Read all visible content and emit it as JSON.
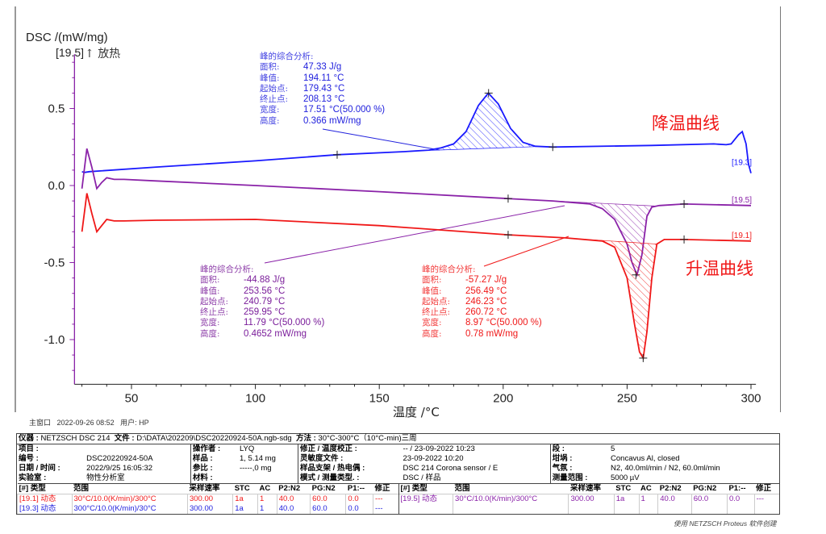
{
  "chart_data": {
    "type": "line",
    "ylabel": "DSC /(mW/mg)",
    "xlabel": "温度 /°C",
    "y_marker": "[19.5]",
    "exo_label": "放热",
    "xlim": [
      27,
      302
    ],
    "ylim": [
      -1.29,
      0.81
    ],
    "x_ticks": [
      50,
      100,
      150,
      200,
      250,
      300
    ],
    "y_ticks": [
      0.5,
      0.0,
      -0.5,
      -1.0
    ],
    "y_tick_labels": [
      "0.5",
      "0.0",
      "-0.5",
      "-1.0"
    ],
    "grid": false,
    "series": [
      {
        "name": "[19.3]",
        "color": "#1a1aff",
        "x": [
          30,
          31,
          33,
          60,
          100,
          133,
          160,
          170,
          175,
          180,
          185,
          190,
          194,
          198,
          203,
          208,
          213,
          220,
          260,
          285,
          290,
          292,
          295,
          296.5,
          298,
          299,
          300
        ],
        "y": [
          0.09,
          0.085,
          0.09,
          0.12,
          0.16,
          0.2,
          0.22,
          0.23,
          0.245,
          0.27,
          0.35,
          0.52,
          0.6,
          0.53,
          0.37,
          0.28,
          0.255,
          0.25,
          0.26,
          0.27,
          0.265,
          0.27,
          0.33,
          0.35,
          0.27,
          0.14,
          0.08
        ],
        "markers": [
          [
            133,
            0.2
          ],
          [
            194.11,
            0.6
          ],
          [
            220,
            0.25
          ]
        ],
        "hatch": [
          165,
          215
        ]
      },
      {
        "name": "[19.5]",
        "color": "#8a22a8",
        "x": [
          30,
          32,
          34,
          36,
          38,
          40,
          43,
          47,
          60,
          100,
          150,
          202,
          220,
          235,
          240,
          245,
          250,
          252,
          254,
          256,
          258,
          260,
          263,
          273,
          300
        ],
        "y": [
          -0.02,
          0.24,
          0.12,
          -0.02,
          0.02,
          0.05,
          0.04,
          0.04,
          0.03,
          0.0,
          -0.04,
          -0.085,
          -0.1,
          -0.12,
          -0.15,
          -0.22,
          -0.38,
          -0.5,
          -0.58,
          -0.45,
          -0.2,
          -0.14,
          -0.13,
          -0.12,
          -0.13
        ],
        "markers": [
          [
            202,
            -0.085
          ],
          [
            253.56,
            -0.58
          ],
          [
            273,
            -0.12
          ]
        ],
        "hatch": [
          218,
          262
        ]
      },
      {
        "name": "[19.1]",
        "color": "#f01818",
        "x": [
          30,
          32,
          34,
          36,
          38,
          40,
          43,
          47,
          60,
          100,
          150,
          202,
          225,
          240,
          245,
          250,
          253,
          255,
          256.5,
          258,
          260,
          262,
          265,
          273,
          300
        ],
        "y": [
          -0.3,
          -0.05,
          -0.18,
          -0.3,
          -0.26,
          -0.22,
          -0.23,
          -0.23,
          -0.225,
          -0.22,
          -0.26,
          -0.32,
          -0.34,
          -0.36,
          -0.4,
          -0.6,
          -0.9,
          -1.08,
          -1.12,
          -0.95,
          -0.6,
          -0.38,
          -0.35,
          -0.35,
          -0.36
        ],
        "markers": [
          [
            202,
            -0.32
          ],
          [
            256.49,
            -1.12
          ],
          [
            273,
            -0.35
          ]
        ],
        "hatch": [
          222,
          262
        ]
      }
    ]
  },
  "labels": {
    "cooling": "降温曲线",
    "heating": "升温曲线"
  },
  "annotations": [
    {
      "color": "#2222dd",
      "title": "峰的综合分析:",
      "rows": [
        [
          "面积:",
          "47.33 J/g"
        ],
        [
          "峰值:",
          "194.11 °C"
        ],
        [
          "起始点:",
          "179.43 °C"
        ],
        [
          "终止点:",
          "208.13 °C"
        ],
        [
          "宽度:",
          "17.51 °C(50.000 %)"
        ],
        [
          "高度:",
          "0.366 mW/mg"
        ]
      ]
    },
    {
      "color": "#7a1d9a",
      "title": "峰的综合分析:",
      "rows": [
        [
          "面积:",
          "-44.88 J/g"
        ],
        [
          "峰值:",
          "253.56 °C"
        ],
        [
          "起始点:",
          "240.79 °C"
        ],
        [
          "终止点:",
          "259.95 °C"
        ],
        [
          "宽度:",
          "11.79 °C(50.000 %)"
        ],
        [
          "高度:",
          "0.4652 mW/mg"
        ]
      ]
    },
    {
      "color": "#f01818",
      "title": "峰的综合分析:",
      "rows": [
        [
          "面积:",
          "-57.27 J/g"
        ],
        [
          "峰值:",
          "256.49 °C"
        ],
        [
          "起始点:",
          "246.23 °C"
        ],
        [
          "终止点:",
          "260.72 °C"
        ],
        [
          "宽度:",
          "8.97 °C(50.000 %)"
        ],
        [
          "高度:",
          "0.78 mW/mg"
        ]
      ]
    }
  ],
  "footer_line": {
    "window": "主窗口",
    "datetime": "2022-09-26 08:52",
    "user": "用户: HP"
  },
  "info": {
    "instrument_label": "仪器 :",
    "instrument": "NETZSCH DSC 214",
    "file_label": "文件 :",
    "file": "D:\\DATA\\202209\\DSC20220924-50A.ngb-sdg",
    "method_label": "方法 :",
    "method": "30°C-300°C（10°C-min)三周",
    "rows": [
      [
        [
          "项目 :",
          ""
        ],
        [
          "操作者 :",
          "LYQ"
        ],
        [
          "修正 / 温度校正 :",
          "-- / 23-09-2022 10:23"
        ],
        [
          "段 :",
          "5"
        ]
      ],
      [
        [
          "编号 :",
          "DSC20220924-50A"
        ],
        [
          "样品 :",
          "1, 5.14 mg"
        ],
        [
          "灵敏度文件 :",
          "23-09-2022 10:20"
        ],
        [
          "坩埚 :",
          "Concavus Al, closed"
        ]
      ],
      [
        [
          "日期 / 时间 :",
          "2022/9/25 16:05:32"
        ],
        [
          "参比 :",
          "-----,0 mg"
        ],
        [
          "样品支架 / 热电偶 :",
          "DSC 214 Corona sensor / E"
        ],
        [
          "气氛 :",
          "N2, 40.0ml/min / N2, 60.0ml/min"
        ]
      ],
      [
        [
          "实验室 :",
          "物性分析室"
        ],
        [
          "材料 :",
          ""
        ],
        [
          "模式 / 测量类型. :",
          "DSC / 样品"
        ],
        [
          "测量范围 :",
          "5000 µV"
        ]
      ]
    ],
    "run_headers": [
      "[#] 类型",
      "范围",
      "采样速率",
      "STC",
      "AC",
      "P2:N2",
      "PG:N2",
      "P1:--",
      "修正"
    ],
    "runs_left": [
      {
        "color": "#f01818",
        "cells": [
          "[19.1] 动态",
          "30°C/10.0(K/min)/300°C",
          "300.00",
          "1a",
          "1",
          "40.0",
          "60.0",
          "0.0",
          "---"
        ]
      },
      {
        "color": "#2222dd",
        "cells": [
          "[19.3] 动态",
          "300°C/10.0(K/min)/30°C",
          "300.00",
          "1a",
          "1",
          "40.0",
          "60.0",
          "0.0",
          "---"
        ]
      }
    ],
    "runs_right": [
      {
        "color": "#8a22a8",
        "cells": [
          "[19.5] 动态",
          "30°C/10.0(K/min)/300°C",
          "300.00",
          "1a",
          "1",
          "40.0",
          "60.0",
          "0.0",
          "---"
        ]
      }
    ]
  },
  "credit": "使用 NETZSCH Proteus 软件创建"
}
